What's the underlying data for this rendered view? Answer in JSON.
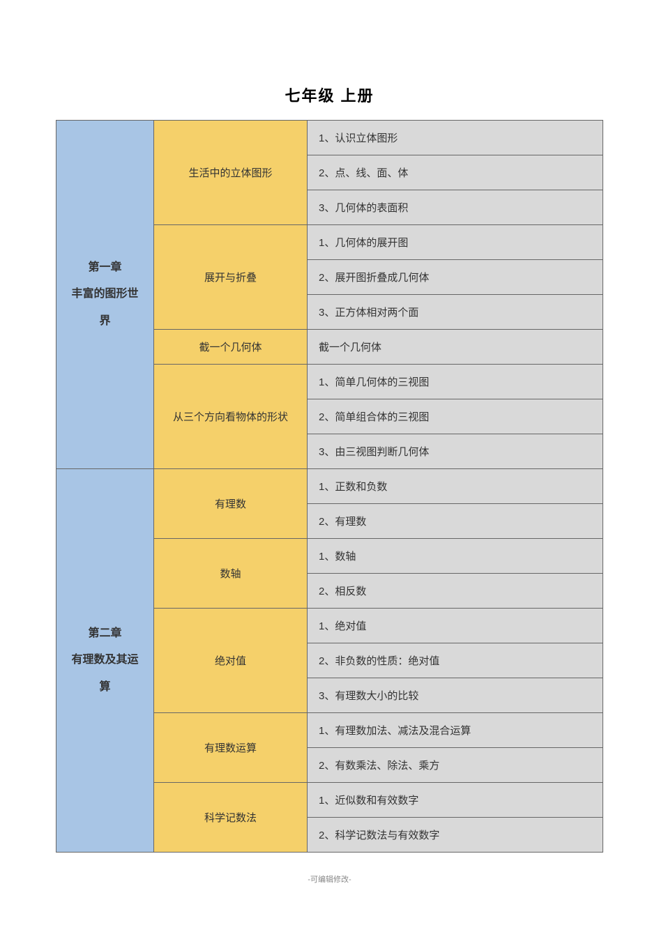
{
  "page": {
    "title": "七年级   上册",
    "footer": "-可编辑修改-"
  },
  "colors": {
    "chapter_bg": "#a8c5e5",
    "section_bg": "#f5d06a",
    "item_bg": "#d9d9d9",
    "border": "#666666",
    "text": "#333333"
  },
  "fontsize": {
    "title": 22,
    "chapter": 16,
    "section": 15,
    "item": 15,
    "footer": 11
  },
  "column_widths": {
    "chapter": 140,
    "section": 220
  },
  "chapters": [
    {
      "title_line1": "第一章",
      "title_line2": "丰富的图形世",
      "title_line3": "界",
      "sections": [
        {
          "title": "生活中的立体图形",
          "items": [
            "1、认识立体图形",
            "2、点、线、面、体",
            "3、几何体的表面积"
          ]
        },
        {
          "title": "展开与折叠",
          "items": [
            "1、几何体的展开图",
            "2、展开图折叠成几何体",
            "3、正方体相对两个面"
          ]
        },
        {
          "title": "截一个几何体",
          "items": [
            "截一个几何体"
          ]
        },
        {
          "title": "从三个方向看物体的形状",
          "items": [
            "1、简单几何体的三视图",
            "2、简单组合体的三视图",
            "3、由三视图判断几何体"
          ]
        }
      ]
    },
    {
      "title_line1": "第二章",
      "title_line2": "有理数及其运",
      "title_line3": "算",
      "sections": [
        {
          "title": "有理数",
          "items": [
            "1、正数和负数",
            "2、有理数"
          ]
        },
        {
          "title": "数轴",
          "items": [
            "1、数轴",
            "2、相反数"
          ]
        },
        {
          "title": "绝对值",
          "items": [
            "1、绝对值",
            "2、非负数的性质：绝对值",
            "3、有理数大小的比较"
          ]
        },
        {
          "title": "有理数运算",
          "items": [
            "1、有理数加法、减法及混合运算",
            "2、有数乘法、除法、乘方"
          ]
        },
        {
          "title": "科学记数法",
          "items": [
            "1、近似数和有效数字",
            "2、科学记数法与有效数字"
          ]
        }
      ]
    }
  ]
}
